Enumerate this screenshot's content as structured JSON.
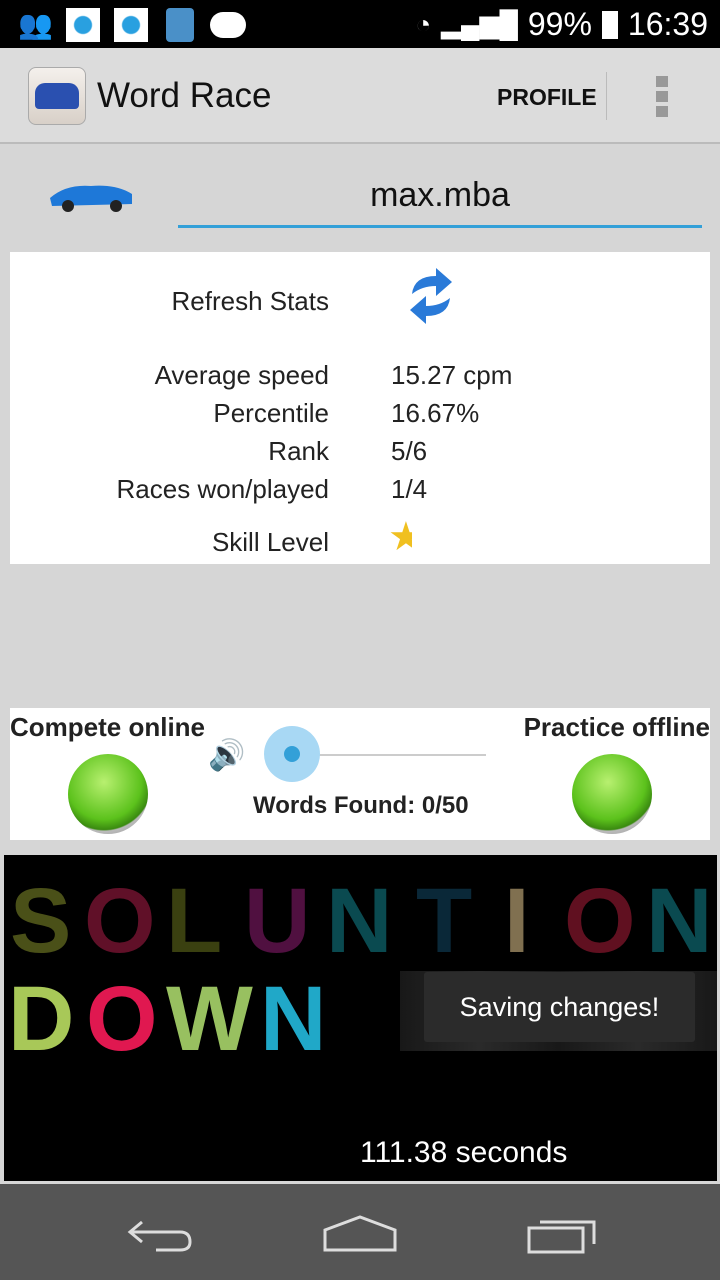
{
  "status_bar": {
    "battery": "99%",
    "time": "16:39",
    "icons": [
      "contacts-icon",
      "app-notification-icon",
      "app-notification-icon",
      "lock-icon",
      "android-icon",
      "wifi-icon",
      "signal-icon",
      "battery-charging-icon"
    ]
  },
  "action_bar": {
    "title": "Word Race",
    "profile_label": "PROFILE",
    "overflow_icon": "overflow-menu-icon"
  },
  "user": {
    "username": "max.mba"
  },
  "stats": {
    "refresh_label": "Refresh Stats",
    "rows": [
      {
        "label": "Average speed",
        "value": "15.27 cpm"
      },
      {
        "label": "Percentile",
        "value": "16.67%"
      },
      {
        "label": "Rank",
        "value": "5/6"
      },
      {
        "label": "Races won/played",
        "value": "1/4"
      }
    ],
    "skill_label": "Skill Level"
  },
  "controls": {
    "compete_label": "Compete online",
    "practice_label": "Practice offline",
    "words_found": "Words Found: 0/50",
    "volume_level": 0.15
  },
  "game": {
    "row1": [
      "S",
      "O",
      "L",
      "U",
      "N",
      "T",
      "I",
      "O",
      "N"
    ],
    "row2": [
      "D",
      "O",
      "W",
      "N"
    ],
    "toast": "Saving changes!",
    "timer": "111.38 seconds"
  },
  "colors": {
    "accent": "#33a0d8",
    "button_green": "#5cc21c"
  }
}
